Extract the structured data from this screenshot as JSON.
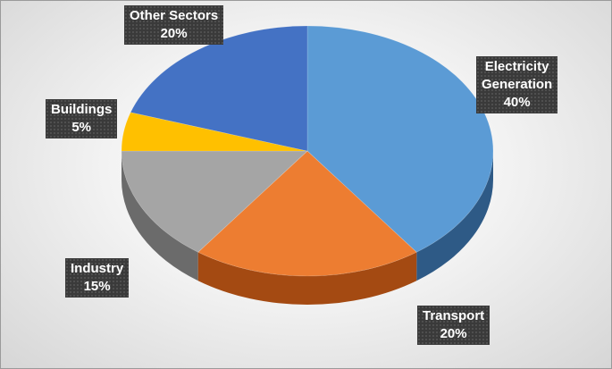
{
  "chart_data": {
    "type": "pie",
    "title": "",
    "categories": [
      "Electricity Generation",
      "Transport",
      "Industry",
      "Buildings",
      "Other Sectors"
    ],
    "values": [
      40,
      20,
      15,
      5,
      20
    ],
    "unit": "%",
    "colors": [
      "#5b9bd5",
      "#ed7d31",
      "#a5a5a5",
      "#ffc000",
      "#4472c4"
    ],
    "side_colors": [
      "#2e5a86",
      "#a44a12",
      "#6b6b6b",
      "#b58800",
      "#2b4c84"
    ],
    "labels": [
      {
        "name": "Electricity Generation",
        "lines": [
          "Electricity",
          "Generation"
        ],
        "value": "40%"
      },
      {
        "name": "Transport",
        "lines": [
          "Transport"
        ],
        "value": "20%"
      },
      {
        "name": "Industry",
        "lines": [
          "Industry"
        ],
        "value": "15%"
      },
      {
        "name": "Buildings",
        "lines": [
          "Buildings"
        ],
        "value": "5%"
      },
      {
        "name": "Other Sectors",
        "lines": [
          "Other Sectors"
        ],
        "value": "20%"
      }
    ],
    "style": "3d-pie",
    "legend": "none"
  }
}
